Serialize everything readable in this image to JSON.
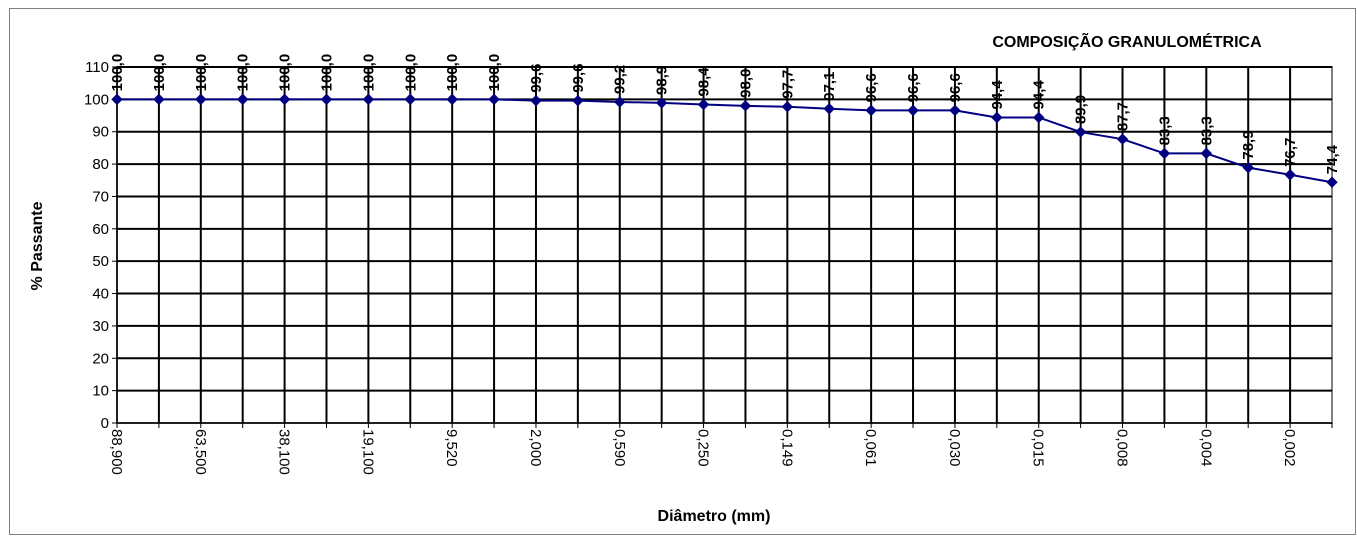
{
  "chart_data": {
    "type": "line",
    "title": "COMPOSIÇÃO GRANULOMÉTRICA",
    "xlabel": "Diâmetro (mm)",
    "ylabel": "% Passante",
    "ylim": [
      0,
      110
    ],
    "yticks": [
      "0",
      "10",
      "20",
      "30",
      "40",
      "50",
      "60",
      "70",
      "80",
      "90",
      "100",
      "110"
    ],
    "grid": true,
    "x_tick_labels": [
      "88,900",
      "63,500",
      "38,100",
      "19,100",
      "9,520",
      "2,000",
      "0,590",
      "0,250",
      "0,149",
      "0,061",
      "0,030",
      "0,015",
      "0,008",
      "0,004",
      "0,002"
    ],
    "series": [
      {
        "color": "#000080",
        "values": [
          100.0,
          100.0,
          100.0,
          100.0,
          100.0,
          100.0,
          100.0,
          100.0,
          100.0,
          100.0,
          99.6,
          99.6,
          99.2,
          98.9,
          98.4,
          98.0,
          97.7,
          97.1,
          96.6,
          96.6,
          96.6,
          94.4,
          94.4,
          89.9,
          87.7,
          83.3,
          83.3,
          78.9,
          76.7,
          74.4
        ],
        "labels": [
          "100,0",
          "100,0",
          "100,0",
          "100,0",
          "100,0",
          "100,0",
          "100,0",
          "100,0",
          "100,0",
          "100,0",
          "99,6",
          "99,6",
          "99,2",
          "98,9",
          "98,4",
          "98,0",
          "97,7",
          "97,1",
          "96,6",
          "96,6",
          "96,6",
          "94,4",
          "94,4",
          "89,9",
          "87,7",
          "83,3",
          "83,3",
          "78,9",
          "76,7",
          "74,4"
        ]
      }
    ]
  }
}
